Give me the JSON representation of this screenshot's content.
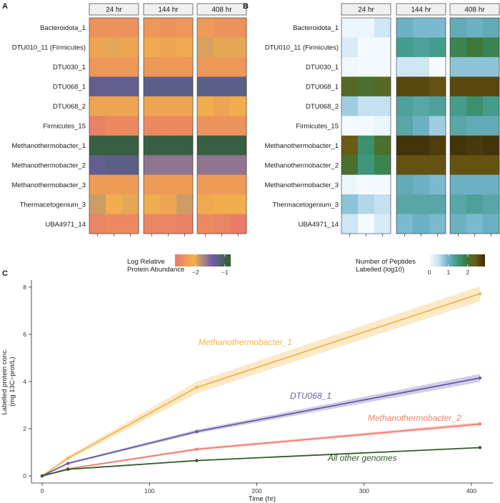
{
  "chart_data": [
    {
      "panel": "A",
      "type": "heatmap",
      "facets": [
        "24 hr",
        "144 hr",
        "408 hr"
      ],
      "rows": [
        "Bacteroidota_1",
        "DTU010_11 (Firmicutes)",
        "DTU030_1",
        "DTU068_1",
        "DTU068_2",
        "Firmicutes_15",
        "Methanothermobacter_1",
        "Methanothermobacter_2",
        "Methanothermobacter_3",
        "Thermacetogenium_3",
        "UBA4971_14"
      ],
      "replicates_per_facet": 3,
      "values": [
        [
          [
            -2.4,
            -2.4,
            -2.4
          ],
          [
            -2.35,
            -2.4,
            -2.35
          ],
          [
            -2.3,
            -2.4,
            -2.4
          ]
        ],
        [
          [
            -2.2,
            -2.0,
            -2.2
          ],
          [
            -2.15,
            -2.2,
            -2.15
          ],
          [
            -1.95,
            -2.0,
            -2.0
          ]
        ],
        [
          [
            -2.35,
            -2.35,
            -2.35
          ],
          [
            -2.35,
            -2.35,
            -2.35
          ],
          [
            -2.35,
            -2.35,
            -2.35
          ]
        ],
        [
          [
            -1.3,
            -1.3,
            -1.3
          ],
          [
            -1.25,
            -1.25,
            -1.25
          ],
          [
            -1.25,
            -1.25,
            -1.25
          ]
        ],
        [
          [
            -2.2,
            -2.2,
            -2.2
          ],
          [
            -2.2,
            -2.2,
            -2.2
          ],
          [
            -2.1,
            -2.2,
            -2.1
          ]
        ],
        [
          [
            -2.6,
            -2.5,
            -2.5
          ],
          [
            -2.5,
            -2.5,
            -2.5
          ],
          [
            -2.4,
            -2.4,
            -2.4
          ]
        ],
        [
          [
            -0.9,
            -0.9,
            -0.9
          ],
          [
            -0.9,
            -0.9,
            -0.9
          ],
          [
            -0.9,
            -0.9,
            -0.9
          ]
        ],
        [
          [
            -1.3,
            -1.25,
            -1.25
          ],
          [
            -1.6,
            -1.6,
            -1.6
          ],
          [
            -1.6,
            -1.6,
            -1.6
          ]
        ],
        [
          [
            -2.3,
            -2.3,
            -2.3
          ],
          [
            -2.3,
            -2.3,
            -2.3
          ],
          [
            -2.3,
            -2.3,
            -2.3
          ]
        ],
        [
          [
            -1.9,
            -2.1,
            -2.0
          ],
          [
            -2.05,
            -2.2,
            -1.9
          ],
          [
            -2.15,
            -2.1,
            -2.1
          ]
        ],
        [
          [
            -2.55,
            -2.5,
            -2.5
          ],
          [
            -2.55,
            -2.55,
            -2.6
          ],
          [
            -2.5,
            -2.55,
            -2.65
          ]
        ]
      ],
      "legend": {
        "title": "Log Relative\nProtein Abundance",
        "breaks": [
          -2,
          -1
        ],
        "colors": [
          "#e8786a",
          "#f1b04c",
          "#6f5fa8",
          "#2f5f2f"
        ],
        "limits": [
          -2.7,
          -0.8
        ]
      }
    },
    {
      "panel": "B",
      "type": "heatmap",
      "facets": [
        "24 hr",
        "144 hr",
        "408 hr"
      ],
      "rows": [
        "Bacteroidota_1",
        "DTU010_11 (Firmicutes)",
        "DTU030_1",
        "DTU068_1",
        "DTU068_2",
        "Firmicutes_15",
        "Methanothermobacter_1",
        "Methanothermobacter_2",
        "Methanothermobacter_3",
        "Thermacetogenium_3",
        "UBA4971_14"
      ],
      "replicates_per_facet": 3,
      "values": [
        [
          [
            0.1,
            0.1,
            0.4
          ],
          [
            1.0,
            0.9,
            0.9
          ],
          [
            1.1,
            1.0,
            1.1
          ]
        ],
        [
          [
            0.3,
            0.0,
            0.0
          ],
          [
            1.4,
            1.3,
            1.4
          ],
          [
            1.8,
            1.95,
            1.8
          ]
        ],
        [
          [
            0.05,
            0.0,
            0.0
          ],
          [
            0.4,
            0.4,
            0.0
          ],
          [
            0.8,
            0.8,
            0.8
          ]
        ],
        [
          [
            2.2,
            2.1,
            2.2
          ],
          [
            2.6,
            2.6,
            2.5
          ],
          [
            2.6,
            2.6,
            2.6
          ]
        ],
        [
          [
            0.7,
            0.5,
            0.5
          ],
          [
            1.3,
            1.2,
            1.3
          ],
          [
            1.4,
            1.6,
            1.4
          ]
        ],
        [
          [
            0.0,
            0.0,
            0.1
          ],
          [
            1.2,
            1.0,
            0.7
          ],
          [
            1.2,
            1.1,
            1.1
          ]
        ],
        [
          [
            2.4,
            1.6,
            2.1
          ],
          [
            2.8,
            2.8,
            2.7
          ],
          [
            2.8,
            2.75,
            2.8
          ]
        ],
        [
          [
            2.1,
            1.5,
            1.8
          ],
          [
            2.5,
            2.5,
            2.5
          ],
          [
            2.5,
            2.5,
            2.5
          ]
        ],
        [
          [
            0.1,
            0.0,
            0.0
          ],
          [
            1.1,
            1.0,
            0.9
          ],
          [
            1.0,
            1.0,
            1.0
          ]
        ],
        [
          [
            0.8,
            0.6,
            0.5
          ],
          [
            1.2,
            1.2,
            1.2
          ],
          [
            1.2,
            1.3,
            1.2
          ]
        ],
        [
          [
            0.4,
            0.0,
            0.3
          ],
          [
            0.9,
            1.0,
            0.9
          ],
          [
            1.0,
            0.9,
            1.0
          ]
        ]
      ],
      "legend": {
        "title": "Number of Peptides\nLabelled (log10)",
        "breaks": [
          0,
          1,
          2
        ],
        "colors": [
          "#f5faff",
          "#c7e2f2",
          "#6fb2c8",
          "#3f9a85",
          "#3a7a3a",
          "#6b5a14",
          "#3a2a08"
        ],
        "limits": [
          0,
          2.9
        ]
      }
    },
    {
      "panel": "C",
      "type": "line",
      "xlabel": "Time (hr)",
      "ylabel": "Labelled protein conc.\n(mg 13C−prot/L)",
      "xlim": [
        -10,
        420
      ],
      "ylim": [
        -0.3,
        8.3
      ],
      "xticks": [
        0,
        100,
        200,
        300,
        400
      ],
      "yticks": [
        0,
        2,
        4,
        6,
        8
      ],
      "series": [
        {
          "name": "Methanothermobacter_1",
          "color": "#f2b54a",
          "x": [
            0,
            24,
            144,
            408
          ],
          "y": [
            0,
            0.75,
            3.75,
            7.72
          ],
          "band": [
            0,
            0.08,
            0.25,
            0.32
          ],
          "label": "Methanothermobacter_1"
        },
        {
          "name": "DTU068_1",
          "color": "#6a5aa8",
          "x": [
            0,
            24,
            144,
            408
          ],
          "y": [
            0,
            0.53,
            1.88,
            4.15
          ],
          "band": [
            0,
            0.04,
            0.08,
            0.17
          ],
          "label": "DTU068_1"
        },
        {
          "name": "Methanothermobacter_2",
          "color": "#ee7f6f",
          "x": [
            0,
            24,
            144,
            408
          ],
          "y": [
            0,
            0.3,
            1.13,
            2.2
          ],
          "band": [
            0,
            0.03,
            0.06,
            0.08
          ],
          "label": "Methanothermobacter_2"
        },
        {
          "name": "All other genomes",
          "color": "#2f5a25",
          "x": [
            0,
            24,
            144,
            408
          ],
          "y": [
            0,
            0.28,
            0.65,
            1.2
          ],
          "band": [
            0,
            0.0,
            0.0,
            0.0
          ],
          "label": "All other genomes"
        }
      ]
    }
  ]
}
